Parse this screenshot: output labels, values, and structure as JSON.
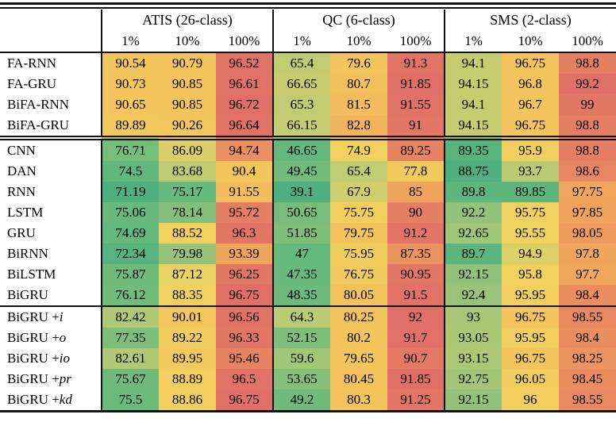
{
  "chart_data": {
    "type": "heatmap",
    "description": "Model accuracy table with per-dataset green(low)-yellow(mid)-red(high) cell shading",
    "col_groups": [
      {
        "label": "ATIS (26-class)",
        "sub_columns": [
          "1%",
          "10%",
          "100%"
        ]
      },
      {
        "label": "QC (6-class)",
        "sub_columns": [
          "1%",
          "10%",
          "100%"
        ]
      },
      {
        "label": "SMS (2-class)",
        "sub_columns": [
          "1%",
          "10%",
          "100%"
        ]
      }
    ],
    "row_blocks": [
      {
        "rows": [
          {
            "label": "FA-RNN",
            "label_italic": "",
            "values": [
              "90.54",
              "90.79",
              "96.52",
              "65.4",
              "79.6",
              "91.3",
              "94.1",
              "96.75",
              "98.8"
            ]
          },
          {
            "label": "FA-GRU",
            "label_italic": "",
            "values": [
              "90.73",
              "90.85",
              "96.61",
              "66.65",
              "80.7",
              "91.85",
              "94.15",
              "96.8",
              "99.2"
            ]
          },
          {
            "label": "BiFA-RNN",
            "label_italic": "",
            "values": [
              "90.65",
              "90.85",
              "96.72",
              "65.3",
              "81.5",
              "91.55",
              "94.1",
              "96.7",
              "99"
            ]
          },
          {
            "label": "BiFA-GRU",
            "label_italic": "",
            "values": [
              "89.89",
              "90.26",
              "96.64",
              "66.15",
              "82.8",
              "91",
              "94.15",
              "96.75",
              "98.8"
            ]
          }
        ]
      },
      {
        "rows": [
          {
            "label": "CNN",
            "label_italic": "",
            "values": [
              "76.71",
              "86.09",
              "94.74",
              "46.65",
              "74.9",
              "89.25",
              "89.35",
              "95.9",
              "98.8"
            ]
          },
          {
            "label": "DAN",
            "label_italic": "",
            "values": [
              "74.5",
              "83.68",
              "90.4",
              "49.45",
              "65.4",
              "77.8",
              "88.75",
              "93.7",
              "98.6"
            ]
          },
          {
            "label": "RNN",
            "label_italic": "",
            "values": [
              "71.19",
              "75.17",
              "91.55",
              "39.1",
              "67.9",
              "85",
              "89.8",
              "89.85",
              "97.75"
            ]
          },
          {
            "label": "LSTM",
            "label_italic": "",
            "values": [
              "75.06",
              "78.14",
              "95.72",
              "50.65",
              "75.75",
              "90",
              "92.2",
              "95.75",
              "97.85"
            ]
          },
          {
            "label": "GRU",
            "label_italic": "",
            "values": [
              "74.69",
              "88.52",
              "96.3",
              "51.85",
              "79.75",
              "91.2",
              "92.65",
              "95.55",
              "98.05"
            ]
          },
          {
            "label": "BiRNN",
            "label_italic": "",
            "values": [
              "72.34",
              "79.98",
              "93.39",
              "47",
              "75.95",
              "87.35",
              "89.7",
              "94.9",
              "97.8"
            ]
          },
          {
            "label": "BiLSTM",
            "label_italic": "",
            "values": [
              "75.87",
              "87.12",
              "96.25",
              "47.35",
              "76.75",
              "90.95",
              "92.15",
              "95.8",
              "97.7"
            ]
          },
          {
            "label": "BiGRU",
            "label_italic": "",
            "values": [
              "76.12",
              "88.35",
              "96.75",
              "48.35",
              "80.05",
              "91.5",
              "92.4",
              "95.95",
              "98.4"
            ]
          }
        ]
      },
      {
        "rows": [
          {
            "label": "BiGRU +",
            "label_italic": "i",
            "values": [
              "82.42",
              "90.01",
              "96.56",
              "64.3",
              "80.25",
              "92",
              "93",
              "96.75",
              "98.55"
            ]
          },
          {
            "label": "BiGRU +",
            "label_italic": "o",
            "values": [
              "77.35",
              "89.22",
              "96.33",
              "52.15",
              "80.2",
              "91.7",
              "93.05",
              "95.95",
              "98.4"
            ]
          },
          {
            "label": "BiGRU +",
            "label_italic": "io",
            "values": [
              "82.61",
              "89.95",
              "95.46",
              "59.6",
              "79.65",
              "90.7",
              "93.15",
              "96.75",
              "98.25"
            ]
          },
          {
            "label": "BiGRU +",
            "label_italic": "pr",
            "values": [
              "75.67",
              "88.89",
              "96.5",
              "53.65",
              "80.45",
              "91.85",
              "92.75",
              "96.05",
              "98.45"
            ]
          },
          {
            "label": "BiGRU +",
            "label_italic": "kd",
            "values": [
              "75.5",
              "88.86",
              "96.75",
              "49.2",
              "80.3",
              "91.25",
              "92.15",
              "96",
              "98.55"
            ]
          }
        ]
      }
    ],
    "color_scale": {
      "normalization": "per-column-group min/max",
      "stops": [
        [
          0.0,
          "#50AF7E"
        ],
        [
          0.12,
          "#5FB77D"
        ],
        [
          0.3,
          "#8BC17A"
        ],
        [
          0.5,
          "#C2CB72"
        ],
        [
          0.65,
          "#F0D35F"
        ],
        [
          0.78,
          "#F3C35C"
        ],
        [
          0.88,
          "#EFA05C"
        ],
        [
          1.0,
          "#E06F67"
        ]
      ]
    }
  }
}
